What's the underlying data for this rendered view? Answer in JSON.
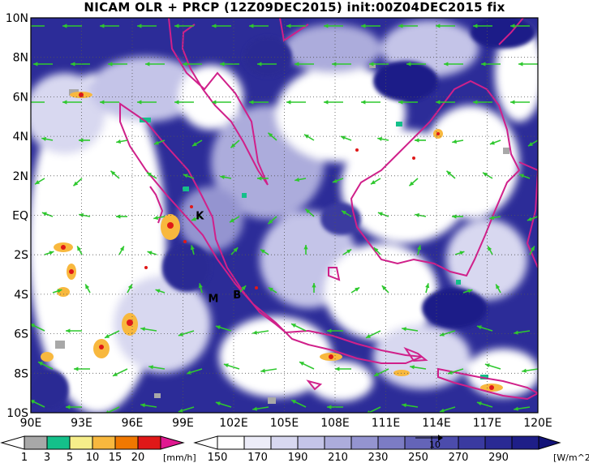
{
  "title": "NICAM OLR + PRCP (12Z09DEC2015) init:00Z04DEC2015 fix",
  "map": {
    "lat_labels": [
      "10N",
      "8N",
      "6N",
      "4N",
      "2N",
      "EQ",
      "2S",
      "4S",
      "6S",
      "8S",
      "10S"
    ],
    "lon_labels": [
      "90E",
      "93E",
      "96E",
      "99E",
      "102E",
      "105E",
      "108E",
      "111E",
      "114E",
      "117E",
      "120E"
    ],
    "lat_range": [
      -10,
      10
    ],
    "lon_range": [
      90,
      120
    ],
    "markers": [
      {
        "label": "K",
        "lon": 100.0,
        "lat": -0.2
      },
      {
        "label": "M",
        "lon": 100.8,
        "lat": -4.4
      },
      {
        "label": "B",
        "lon": 102.2,
        "lat": -4.2
      }
    ],
    "colors": {
      "coastline": "#d0208a",
      "wind_vector": "#2ec82e",
      "grid": "#555555",
      "cloud_bright": "#ffffff",
      "clear_dark": "#22228f"
    }
  },
  "precip_colorbar": {
    "labels": [
      "1",
      "3",
      "5",
      "10",
      "15",
      "20"
    ],
    "unit": "[mm/h]",
    "colors": [
      "#a8a8a8",
      "#14c08a",
      "#f6ee8a",
      "#f8b83e",
      "#f07800",
      "#e01818",
      "#e01890"
    ]
  },
  "olr_colorbar": {
    "labels": [
      "150",
      "170",
      "190",
      "210",
      "230",
      "250",
      "270",
      "290"
    ],
    "unit": "[W/m^2]",
    "ref_vector_label": "10",
    "colors": [
      "#ffffff",
      "#ececf8",
      "#d8d8f0",
      "#c4c4e8",
      "#acacdc",
      "#9494d0",
      "#7c7cc4",
      "#6464b8",
      "#4c4cac",
      "#3a3aa0",
      "#2a2a94",
      "#1e1e88",
      "#121278"
    ]
  }
}
